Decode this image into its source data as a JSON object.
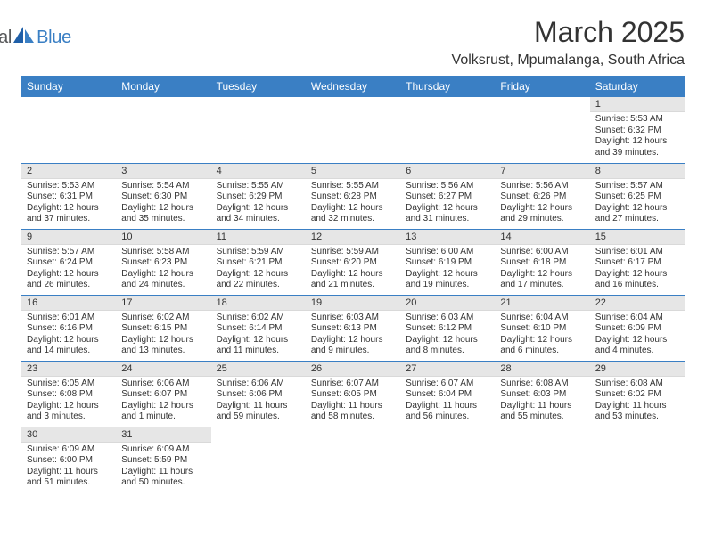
{
  "brand": {
    "name_gray": "General",
    "name_blue": "Blue"
  },
  "title": "March 2025",
  "location": "Volksrust, Mpumalanga, South Africa",
  "colors": {
    "header_bg": "#3a7fc4",
    "header_text": "#ffffff",
    "daynum_bg": "#e6e6e6",
    "cell_border": "#3a7fc4",
    "body_text": "#333333",
    "logo_gray": "#58595b",
    "logo_blue": "#3a7fc4",
    "background": "#ffffff"
  },
  "typography": {
    "title_fontsize": 32,
    "location_fontsize": 16,
    "weekday_fontsize": 12,
    "daynum_fontsize": 11,
    "cell_fontsize": 10
  },
  "weekdays": [
    "Sunday",
    "Monday",
    "Tuesday",
    "Wednesday",
    "Thursday",
    "Friday",
    "Saturday"
  ],
  "weeks": [
    [
      null,
      null,
      null,
      null,
      null,
      null,
      {
        "n": "1",
        "sunrise": "5:53 AM",
        "sunset": "6:32 PM",
        "daylight": "12 hours and 39 minutes."
      }
    ],
    [
      {
        "n": "2",
        "sunrise": "5:53 AM",
        "sunset": "6:31 PM",
        "daylight": "12 hours and 37 minutes."
      },
      {
        "n": "3",
        "sunrise": "5:54 AM",
        "sunset": "6:30 PM",
        "daylight": "12 hours and 35 minutes."
      },
      {
        "n": "4",
        "sunrise": "5:55 AM",
        "sunset": "6:29 PM",
        "daylight": "12 hours and 34 minutes."
      },
      {
        "n": "5",
        "sunrise": "5:55 AM",
        "sunset": "6:28 PM",
        "daylight": "12 hours and 32 minutes."
      },
      {
        "n": "6",
        "sunrise": "5:56 AM",
        "sunset": "6:27 PM",
        "daylight": "12 hours and 31 minutes."
      },
      {
        "n": "7",
        "sunrise": "5:56 AM",
        "sunset": "6:26 PM",
        "daylight": "12 hours and 29 minutes."
      },
      {
        "n": "8",
        "sunrise": "5:57 AM",
        "sunset": "6:25 PM",
        "daylight": "12 hours and 27 minutes."
      }
    ],
    [
      {
        "n": "9",
        "sunrise": "5:57 AM",
        "sunset": "6:24 PM",
        "daylight": "12 hours and 26 minutes."
      },
      {
        "n": "10",
        "sunrise": "5:58 AM",
        "sunset": "6:23 PM",
        "daylight": "12 hours and 24 minutes."
      },
      {
        "n": "11",
        "sunrise": "5:59 AM",
        "sunset": "6:21 PM",
        "daylight": "12 hours and 22 minutes."
      },
      {
        "n": "12",
        "sunrise": "5:59 AM",
        "sunset": "6:20 PM",
        "daylight": "12 hours and 21 minutes."
      },
      {
        "n": "13",
        "sunrise": "6:00 AM",
        "sunset": "6:19 PM",
        "daylight": "12 hours and 19 minutes."
      },
      {
        "n": "14",
        "sunrise": "6:00 AM",
        "sunset": "6:18 PM",
        "daylight": "12 hours and 17 minutes."
      },
      {
        "n": "15",
        "sunrise": "6:01 AM",
        "sunset": "6:17 PM",
        "daylight": "12 hours and 16 minutes."
      }
    ],
    [
      {
        "n": "16",
        "sunrise": "6:01 AM",
        "sunset": "6:16 PM",
        "daylight": "12 hours and 14 minutes."
      },
      {
        "n": "17",
        "sunrise": "6:02 AM",
        "sunset": "6:15 PM",
        "daylight": "12 hours and 13 minutes."
      },
      {
        "n": "18",
        "sunrise": "6:02 AM",
        "sunset": "6:14 PM",
        "daylight": "12 hours and 11 minutes."
      },
      {
        "n": "19",
        "sunrise": "6:03 AM",
        "sunset": "6:13 PM",
        "daylight": "12 hours and 9 minutes."
      },
      {
        "n": "20",
        "sunrise": "6:03 AM",
        "sunset": "6:12 PM",
        "daylight": "12 hours and 8 minutes."
      },
      {
        "n": "21",
        "sunrise": "6:04 AM",
        "sunset": "6:10 PM",
        "daylight": "12 hours and 6 minutes."
      },
      {
        "n": "22",
        "sunrise": "6:04 AM",
        "sunset": "6:09 PM",
        "daylight": "12 hours and 4 minutes."
      }
    ],
    [
      {
        "n": "23",
        "sunrise": "6:05 AM",
        "sunset": "6:08 PM",
        "daylight": "12 hours and 3 minutes."
      },
      {
        "n": "24",
        "sunrise": "6:06 AM",
        "sunset": "6:07 PM",
        "daylight": "12 hours and 1 minute."
      },
      {
        "n": "25",
        "sunrise": "6:06 AM",
        "sunset": "6:06 PM",
        "daylight": "11 hours and 59 minutes."
      },
      {
        "n": "26",
        "sunrise": "6:07 AM",
        "sunset": "6:05 PM",
        "daylight": "11 hours and 58 minutes."
      },
      {
        "n": "27",
        "sunrise": "6:07 AM",
        "sunset": "6:04 PM",
        "daylight": "11 hours and 56 minutes."
      },
      {
        "n": "28",
        "sunrise": "6:08 AM",
        "sunset": "6:03 PM",
        "daylight": "11 hours and 55 minutes."
      },
      {
        "n": "29",
        "sunrise": "6:08 AM",
        "sunset": "6:02 PM",
        "daylight": "11 hours and 53 minutes."
      }
    ],
    [
      {
        "n": "30",
        "sunrise": "6:09 AM",
        "sunset": "6:00 PM",
        "daylight": "11 hours and 51 minutes."
      },
      {
        "n": "31",
        "sunrise": "6:09 AM",
        "sunset": "5:59 PM",
        "daylight": "11 hours and 50 minutes."
      },
      null,
      null,
      null,
      null,
      null
    ]
  ],
  "labels": {
    "sunrise": "Sunrise:",
    "sunset": "Sunset:",
    "daylight": "Daylight:"
  }
}
